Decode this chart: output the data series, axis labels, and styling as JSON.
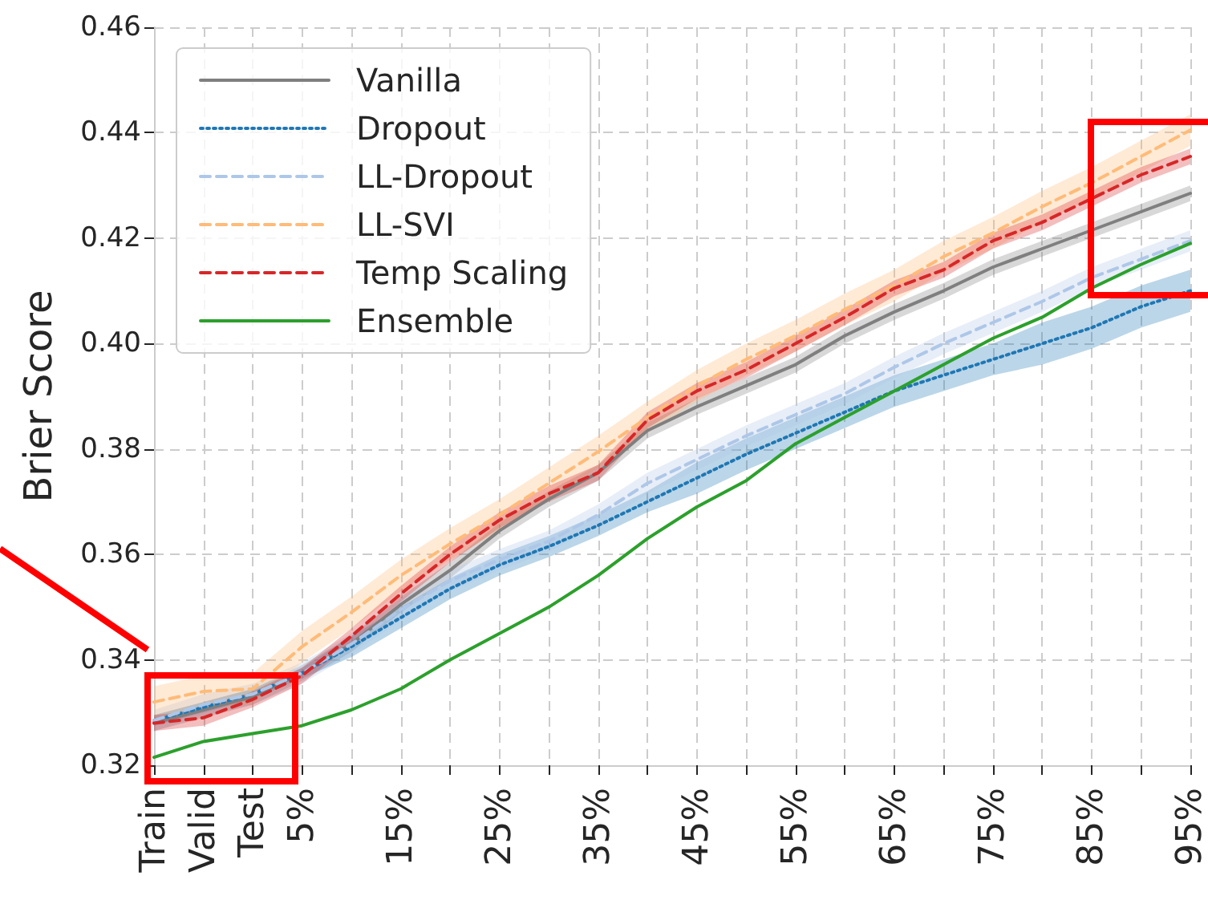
{
  "chart_data": {
    "type": "line",
    "ylabel": "Brier Score",
    "categories": [
      "Train",
      "Valid",
      "Test",
      "5%",
      null,
      "15%",
      null,
      "25%",
      null,
      "35%",
      null,
      "45%",
      null,
      "55%",
      null,
      "65%",
      null,
      "75%",
      null,
      "85%",
      null,
      "95%"
    ],
    "ylim": [
      0.32,
      0.46
    ],
    "yticks": [
      {
        "value": 0.32,
        "label": "0.32"
      },
      {
        "value": 0.34,
        "label": "0.34"
      },
      {
        "value": 0.36,
        "label": "0.36"
      },
      {
        "value": 0.38,
        "label": "0.38"
      },
      {
        "value": 0.4,
        "label": "0.40"
      },
      {
        "value": 0.42,
        "label": "0.42"
      },
      {
        "value": 0.44,
        "label": "0.44"
      },
      {
        "value": 0.46,
        "label": "0.46"
      }
    ],
    "grid": true,
    "legend": "top left",
    "marker": "none",
    "series": [
      {
        "name": "Vanilla",
        "color": "#7f7f7f",
        "line_style": "solid",
        "values": [
          0.328,
          0.3305,
          0.333,
          0.3375,
          0.343,
          0.3505,
          0.357,
          0.3645,
          0.3705,
          0.3755,
          0.3835,
          0.388,
          0.392,
          0.396,
          0.4015,
          0.406,
          0.41,
          0.4145,
          0.418,
          0.4215,
          0.425,
          0.4285
        ],
        "lower": [
          0.3265,
          0.329,
          0.3315,
          0.336,
          0.3415,
          0.349,
          0.3555,
          0.363,
          0.369,
          0.374,
          0.382,
          0.3865,
          0.3905,
          0.3945,
          0.4,
          0.4045,
          0.4085,
          0.413,
          0.4165,
          0.42,
          0.4235,
          0.427
        ],
        "upper": [
          0.3295,
          0.332,
          0.3345,
          0.339,
          0.3445,
          0.352,
          0.3585,
          0.366,
          0.372,
          0.377,
          0.385,
          0.3895,
          0.3935,
          0.3975,
          0.403,
          0.4075,
          0.4115,
          0.416,
          0.4195,
          0.423,
          0.4265,
          0.43
        ]
      },
      {
        "name": "Dropout",
        "color": "#1f77b4",
        "line_style": "dotted",
        "values": [
          0.3285,
          0.331,
          0.3335,
          0.3375,
          0.3425,
          0.348,
          0.3535,
          0.358,
          0.3615,
          0.3655,
          0.37,
          0.3745,
          0.379,
          0.383,
          0.387,
          0.391,
          0.394,
          0.397,
          0.4,
          0.403,
          0.407,
          0.41
        ],
        "lower": [
          0.3275,
          0.33,
          0.3325,
          0.3365,
          0.3405,
          0.346,
          0.3515,
          0.356,
          0.3595,
          0.3635,
          0.368,
          0.3715,
          0.376,
          0.38,
          0.384,
          0.388,
          0.391,
          0.394,
          0.396,
          0.399,
          0.403,
          0.406
        ],
        "upper": [
          0.3295,
          0.332,
          0.3345,
          0.3385,
          0.3445,
          0.35,
          0.3555,
          0.36,
          0.3635,
          0.3675,
          0.372,
          0.3775,
          0.382,
          0.386,
          0.39,
          0.394,
          0.397,
          0.4,
          0.404,
          0.407,
          0.411,
          0.414
        ]
      },
      {
        "name": "LL-Dropout",
        "color": "#aec7e8",
        "line_style": "dashed",
        "values": [
          0.3285,
          0.3315,
          0.3335,
          0.3375,
          0.343,
          0.3495,
          0.355,
          0.359,
          0.3625,
          0.3675,
          0.3735,
          0.378,
          0.3825,
          0.3865,
          0.3905,
          0.3955,
          0.4,
          0.404,
          0.408,
          0.4125,
          0.416,
          0.4195
        ],
        "lower": [
          0.3265,
          0.3295,
          0.3315,
          0.3355,
          0.341,
          0.3475,
          0.353,
          0.357,
          0.3605,
          0.3655,
          0.3715,
          0.376,
          0.3805,
          0.3845,
          0.3885,
          0.3935,
          0.398,
          0.402,
          0.406,
          0.4105,
          0.414,
          0.4175
        ],
        "upper": [
          0.3305,
          0.3335,
          0.3355,
          0.3395,
          0.345,
          0.3515,
          0.357,
          0.361,
          0.3645,
          0.3695,
          0.3755,
          0.38,
          0.3845,
          0.3885,
          0.3925,
          0.3975,
          0.402,
          0.406,
          0.41,
          0.4145,
          0.418,
          0.4215
        ]
      },
      {
        "name": "LL-SVI",
        "color": "#ffbb78",
        "line_style": "dashed",
        "values": [
          0.332,
          0.334,
          0.3345,
          0.3425,
          0.349,
          0.356,
          0.362,
          0.3675,
          0.3735,
          0.3795,
          0.386,
          0.392,
          0.397,
          0.4015,
          0.4065,
          0.411,
          0.4165,
          0.421,
          0.426,
          0.4305,
          0.4355,
          0.4405
        ],
        "lower": [
          0.329,
          0.331,
          0.3315,
          0.3395,
          0.346,
          0.353,
          0.359,
          0.3645,
          0.3705,
          0.3765,
          0.383,
          0.389,
          0.394,
          0.3985,
          0.4035,
          0.408,
          0.4135,
          0.418,
          0.423,
          0.4275,
          0.4325,
          0.4375
        ],
        "upper": [
          0.335,
          0.337,
          0.3375,
          0.3455,
          0.352,
          0.359,
          0.365,
          0.3705,
          0.3765,
          0.3825,
          0.389,
          0.395,
          0.4,
          0.4045,
          0.4095,
          0.414,
          0.4195,
          0.424,
          0.429,
          0.4335,
          0.4385,
          0.4435
        ]
      },
      {
        "name": "Temp Scaling",
        "color": "#d62728",
        "line_style": "dashed",
        "values": [
          0.328,
          0.329,
          0.3325,
          0.337,
          0.3445,
          0.3525,
          0.36,
          0.3665,
          0.3715,
          0.3755,
          0.3855,
          0.391,
          0.395,
          0.4,
          0.405,
          0.4105,
          0.414,
          0.4195,
          0.423,
          0.4275,
          0.432,
          0.4355
        ],
        "lower": [
          0.3265,
          0.3275,
          0.331,
          0.3355,
          0.343,
          0.351,
          0.3585,
          0.365,
          0.37,
          0.374,
          0.384,
          0.3895,
          0.3935,
          0.3985,
          0.4035,
          0.409,
          0.4125,
          0.418,
          0.4215,
          0.426,
          0.4305,
          0.434
        ],
        "upper": [
          0.3295,
          0.3305,
          0.334,
          0.3385,
          0.346,
          0.354,
          0.3615,
          0.368,
          0.373,
          0.377,
          0.387,
          0.3925,
          0.3965,
          0.4015,
          0.4065,
          0.412,
          0.4155,
          0.421,
          0.4245,
          0.429,
          0.4335,
          0.437
        ]
      },
      {
        "name": "Ensemble",
        "color": "#2ca02c",
        "line_style": "solid",
        "values": [
          0.3215,
          0.3245,
          0.326,
          0.3275,
          0.3305,
          0.3345,
          0.34,
          0.345,
          0.35,
          0.356,
          0.363,
          0.369,
          0.374,
          0.381,
          0.386,
          0.391,
          0.396,
          0.401,
          0.405,
          0.4105,
          0.415,
          0.419
        ]
      }
    ]
  }
}
